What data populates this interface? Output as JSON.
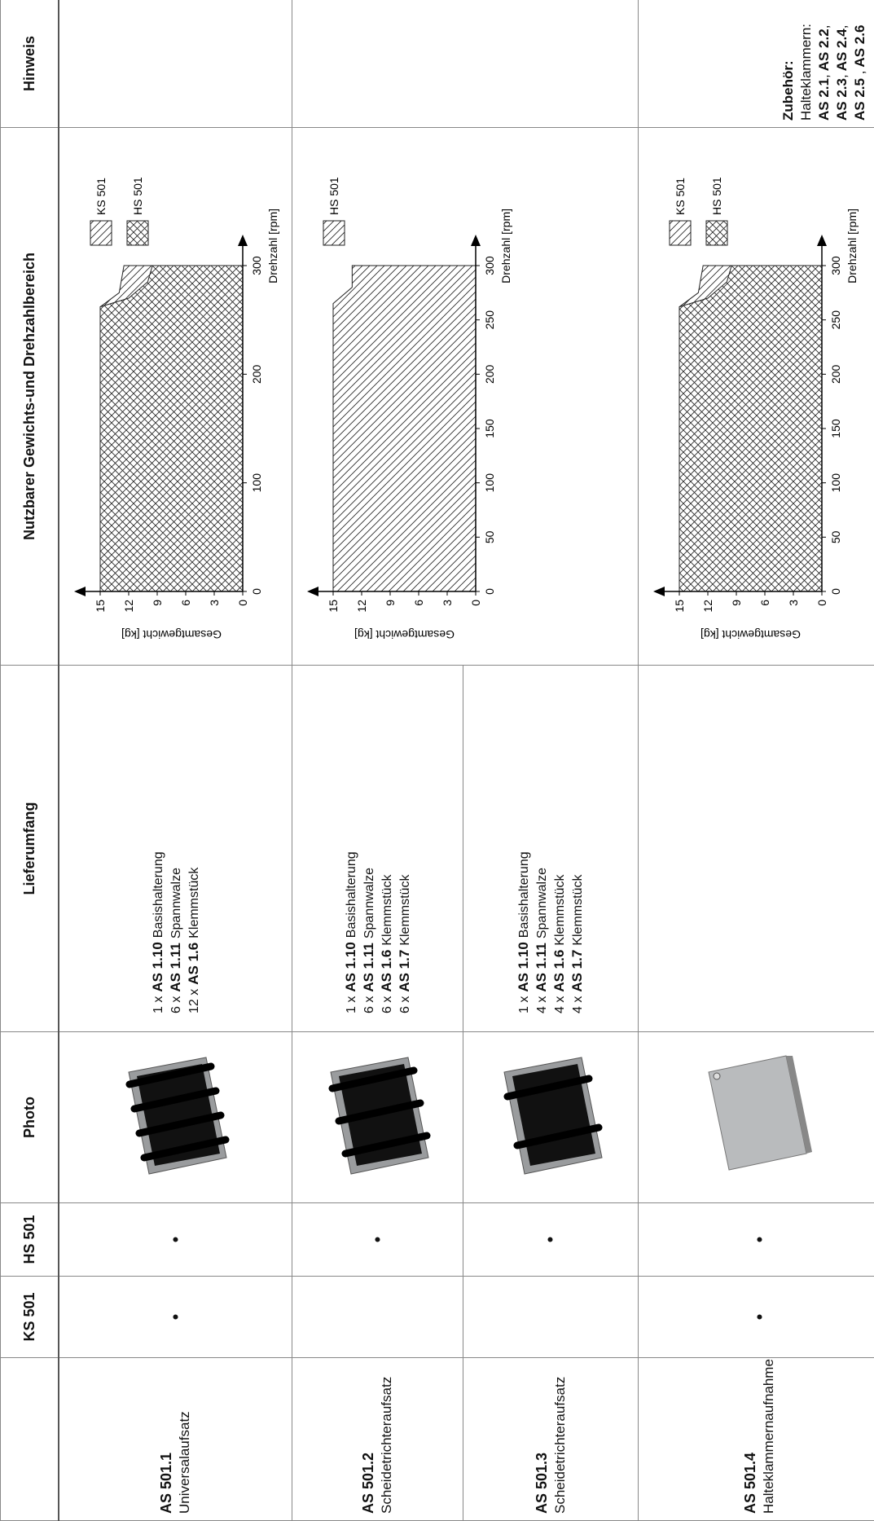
{
  "headers": [
    "KS 501",
    "HS 501",
    "Photo",
    "Lieferumfang",
    "Nutzbarer Gewichts-und Drehzahlbereich",
    "Hinweis"
  ],
  "rows": [
    {
      "code": "AS 501.1",
      "name": "Universalaufsatz",
      "ks": "•",
      "hs": "•",
      "contents": [
        {
          "qty": "1 x",
          "part": "AS 1.10",
          "desc": "Basishalterung"
        },
        {
          "qty": "6 x",
          "part": "AS 1.11",
          "desc": "Spannwalze"
        },
        {
          "qty": "12 x",
          "part": "AS 1.6",
          "desc": "Klemmstück"
        }
      ]
    },
    {
      "code": "AS 501.2",
      "name": "Scheidetrichteraufsatz",
      "hs": "•",
      "contents": [
        {
          "qty": "1 x",
          "part": "AS 1.10",
          "desc": "Basishalterung"
        },
        {
          "qty": "6 x",
          "part": "AS 1.11",
          "desc": "Spannwalze"
        },
        {
          "qty": "6 x",
          "part": "AS 1.6",
          "desc": "Klemmstück"
        },
        {
          "qty": "6 x",
          "part": "AS 1.7",
          "desc": "Klemmstück"
        }
      ]
    },
    {
      "code": "AS 501.3",
      "name": "Scheidetrichteraufsatz",
      "hs": "•",
      "contents": [
        {
          "qty": "1 x",
          "part": "AS 1.10",
          "desc": "Basishalterung"
        },
        {
          "qty": "4 x",
          "part": "AS 1.11",
          "desc": "Spannwalze"
        },
        {
          "qty": "4 x",
          "part": "AS 1.6",
          "desc": "Klemmstück"
        },
        {
          "qty": "4 x",
          "part": "AS 1.7",
          "desc": "Klemmstück"
        }
      ]
    },
    {
      "code": "AS 501.4",
      "name": "Halteklammernaufnahme",
      "ks": "•",
      "hs": "•"
    }
  ],
  "charts": [
    {
      "type": "area",
      "xlabel": "Drehzahl [rpm]",
      "ylabel": "Gesamtgewicht [kg]",
      "xlim": [
        0,
        300
      ],
      "ylim": [
        0,
        15
      ],
      "xticks": [
        0,
        100,
        200,
        300
      ],
      "yticks": [
        0,
        3,
        6,
        9,
        12,
        15
      ],
      "series": [
        {
          "name": "KS 501",
          "pattern": "single",
          "x": [
            0,
            262,
            275,
            300,
            300
          ],
          "values": [
            15,
            15,
            13,
            12.5,
            0
          ]
        },
        {
          "name": "HS 501",
          "pattern": "cross",
          "x": [
            0,
            262,
            270,
            285,
            300,
            300
          ],
          "values": [
            15,
            15,
            12,
            10,
            9.5,
            0
          ]
        }
      ]
    },
    {
      "type": "area",
      "xlabel": "Drehzahl [rpm]",
      "ylabel": "Gesamtgewicht [kg]",
      "xlim": [
        0,
        300
      ],
      "ylim": [
        0,
        15
      ],
      "xticks": [
        0,
        50,
        100,
        150,
        200,
        250,
        300
      ],
      "yticks": [
        0,
        3,
        6,
        9,
        12,
        15
      ],
      "series": [
        {
          "name": "HS 501",
          "pattern": "single",
          "x": [
            0,
            265,
            280,
            300,
            300
          ],
          "values": [
            15,
            15,
            13,
            13,
            0
          ]
        }
      ]
    },
    {
      "type": "area",
      "xlabel": "Drehzahl [rpm]",
      "ylabel": "Gesamtgewicht [kg]",
      "xlim": [
        0,
        300
      ],
      "ylim": [
        0,
        15
      ],
      "xticks": [
        0,
        50,
        100,
        150,
        200,
        250,
        300
      ],
      "yticks": [
        0,
        3,
        6,
        9,
        12,
        15
      ],
      "series": [
        {
          "name": "KS 501",
          "pattern": "single",
          "x": [
            0,
            262,
            275,
            300,
            300
          ],
          "values": [
            15,
            15,
            13,
            12.5,
            0
          ]
        },
        {
          "name": "HS 501",
          "pattern": "cross",
          "x": [
            0,
            262,
            270,
            285,
            300,
            300
          ],
          "values": [
            15,
            15,
            12,
            10,
            9.5,
            0
          ]
        }
      ]
    }
  ],
  "note": {
    "title": "Zubehör:",
    "text": "Halteklammern:",
    "lines": [
      [
        {
          "name": "AS 2.1",
          "sep": ","
        },
        {
          "name": "AS 2.2",
          "sep": ","
        }
      ],
      [
        {
          "name": "AS 2.3",
          "sep": ","
        },
        {
          "name": "AS 2.4",
          "sep": ","
        }
      ],
      [
        {
          "name": "AS 2.5",
          "sep": " ,"
        },
        {
          "name": "AS 2.6"
        }
      ]
    ]
  }
}
